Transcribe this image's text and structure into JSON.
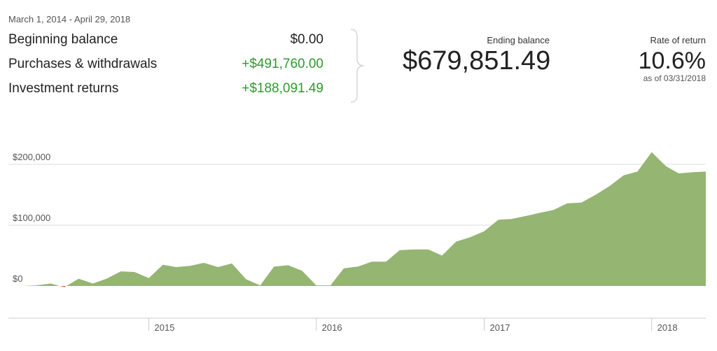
{
  "summary": {
    "date_range": "March 1, 2014 - April 29, 2018",
    "rows": [
      {
        "label": "Beginning balance",
        "value": "$0.00"
      },
      {
        "label": "Purchases & withdrawals",
        "value": "+$491,760.00"
      },
      {
        "label": "Investment returns",
        "value": "+$188,091.49"
      }
    ],
    "ending_balance_label": "Ending balance",
    "ending_balance": "$679,851.49",
    "rate_of_return_label": "Rate of return",
    "rate_of_return": "10.6%",
    "rate_as_of": "as of 03/31/2018"
  },
  "colors": {
    "area_fill": "#95b573",
    "negative_fill": "#e0674a",
    "gridline": "#dddddd",
    "positive_text": "#2e9a2e"
  },
  "chart_data": {
    "type": "area",
    "xlabel": "",
    "ylabel": "",
    "ylim": [
      -50000,
      225000
    ],
    "xlim": [
      "2014-03-01",
      "2018-04-29"
    ],
    "y_ticks": [
      {
        "value": 0,
        "label": "$0"
      },
      {
        "value": 100000,
        "label": "$100,000"
      },
      {
        "value": 200000,
        "label": "$200,000"
      }
    ],
    "x_ticks": [
      {
        "date": "2015-01-01",
        "label": "2015"
      },
      {
        "date": "2016-01-01",
        "label": "2016"
      },
      {
        "date": "2017-01-01",
        "label": "2017"
      },
      {
        "date": "2018-01-01",
        "label": "2018"
      }
    ],
    "grid": true,
    "series": [
      {
        "x": [
          "2014-03-01",
          "2014-04-01",
          "2014-05-01",
          "2014-06-01",
          "2014-07-01",
          "2014-08-01",
          "2014-09-01",
          "2014-10-01",
          "2014-11-01",
          "2014-12-01",
          "2015-01-01",
          "2015-02-01",
          "2015-03-01",
          "2015-04-01",
          "2015-05-01",
          "2015-06-01",
          "2015-07-01",
          "2015-08-01",
          "2015-09-01",
          "2015-10-01",
          "2015-11-01",
          "2015-12-01",
          "2016-01-01",
          "2016-02-01",
          "2016-03-01",
          "2016-04-01",
          "2016-05-01",
          "2016-06-01",
          "2016-07-01",
          "2016-08-01",
          "2016-09-01",
          "2016-10-01",
          "2016-11-01",
          "2016-12-01",
          "2017-01-01",
          "2017-02-01",
          "2017-03-01",
          "2017-04-01",
          "2017-05-01",
          "2017-06-01",
          "2017-07-01",
          "2017-08-01",
          "2017-09-01",
          "2017-10-01",
          "2017-11-01",
          "2017-12-01",
          "2018-01-01",
          "2018-02-01",
          "2018-03-01",
          "2018-04-01",
          "2018-04-29"
        ],
        "values": [
          0,
          0,
          1000,
          4000,
          -2000,
          12000,
          4000,
          12000,
          24000,
          23000,
          13000,
          35000,
          31000,
          33000,
          38000,
          31000,
          37000,
          11000,
          1000,
          32000,
          34000,
          25000,
          1000,
          1000,
          29000,
          32000,
          40000,
          40000,
          59000,
          60000,
          60000,
          50000,
          73000,
          80000,
          90000,
          109000,
          110000,
          115000,
          120000,
          125000,
          136000,
          137000,
          150000,
          164000,
          182000,
          188000,
          220000,
          197000,
          185000,
          187000,
          188000
        ]
      }
    ]
  }
}
